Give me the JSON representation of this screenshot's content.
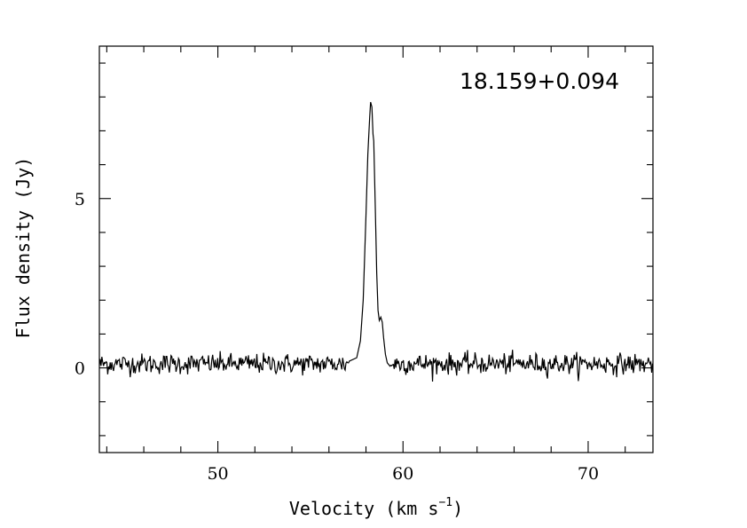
{
  "chart_data": {
    "type": "line",
    "title": "",
    "annotation": "18.159+0.094",
    "xlabel": "Velocity (km s",
    "xlabel_sup": "−1",
    "xlabel_close": ")",
    "ylabel": "Flux density (Jy)",
    "xlim": [
      43.6,
      73.5
    ],
    "ylim": [
      -2.5,
      9.5
    ],
    "x_ticks": [
      50,
      60,
      70
    ],
    "x_tick_labels": [
      "50",
      "60",
      "70"
    ],
    "y_ticks": [
      0,
      5
    ],
    "y_tick_labels": [
      "0",
      "5"
    ],
    "x_minor_step": 2,
    "y_minor_step": 1,
    "grid": false,
    "series": [
      {
        "noise_level": 0.15,
        "baseline": 0.12,
        "peak_velocity": 58.25,
        "peak_flux": 7.85,
        "points": [
          [
            57.1,
            0.2
          ],
          [
            57.5,
            0.3
          ],
          [
            57.7,
            0.8
          ],
          [
            57.85,
            2.0
          ],
          [
            58.0,
            4.5
          ],
          [
            58.1,
            6.3
          ],
          [
            58.2,
            7.4
          ],
          [
            58.25,
            7.85
          ],
          [
            58.32,
            7.7
          ],
          [
            58.38,
            6.9
          ],
          [
            58.42,
            6.7
          ],
          [
            58.5,
            4.8
          ],
          [
            58.58,
            2.8
          ],
          [
            58.65,
            1.7
          ],
          [
            58.72,
            1.4
          ],
          [
            58.8,
            1.5
          ],
          [
            58.88,
            1.35
          ],
          [
            58.95,
            0.9
          ],
          [
            59.05,
            0.4
          ],
          [
            59.15,
            0.15
          ],
          [
            59.3,
            0.05
          ]
        ]
      }
    ]
  }
}
